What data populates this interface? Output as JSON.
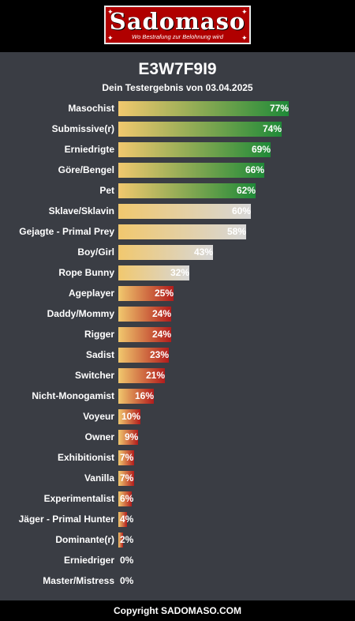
{
  "header": {
    "logo_title": "Sadomaso",
    "logo_subtitle": "Wo Bestrafung zur Belohnung wird"
  },
  "result": {
    "code": "E3W7F9I9",
    "subtitle": "Dein Testergebnis von 03.04.2025"
  },
  "colors": {
    "background": "#3a3d44",
    "bar_start": "#f1c86e",
    "green": "#1f8a38",
    "grey": "#d7d7d7",
    "red": "#b21c1c"
  },
  "chart_data": {
    "type": "bar",
    "orientation": "horizontal",
    "categories": [
      "Masochist",
      "Submissive(r)",
      "Erniedrigte",
      "Göre/Bengel",
      "Pet",
      "Sklave/Sklavin",
      "Gejagte - Primal Prey",
      "Boy/Girl",
      "Rope Bunny",
      "Ageplayer",
      "Daddy/Mommy",
      "Rigger",
      "Sadist",
      "Switcher",
      "Nicht-Monogamist",
      "Voyeur",
      "Owner",
      "Exhibitionist",
      "Vanilla",
      "Experimentalist",
      "Jäger - Primal Hunter",
      "Dominante(r)",
      "Erniedriger",
      "Master/Mistress"
    ],
    "values": [
      77,
      74,
      69,
      66,
      62,
      60,
      58,
      43,
      32,
      25,
      24,
      24,
      23,
      21,
      16,
      10,
      9,
      7,
      7,
      6,
      4,
      2,
      0,
      0
    ],
    "value_labels": [
      "77%",
      "74%",
      "69%",
      "66%",
      "62%",
      "60%",
      "58%",
      "43%",
      "32%",
      "25%",
      "24%",
      "24%",
      "23%",
      "21%",
      "16%",
      "10%",
      "9%",
      "7%",
      "7%",
      "6%",
      "4%",
      "2%",
      "0%",
      "0%"
    ],
    "xlim": [
      0,
      100
    ]
  },
  "footer": {
    "text": "Copyright SADOMASO.COM"
  }
}
